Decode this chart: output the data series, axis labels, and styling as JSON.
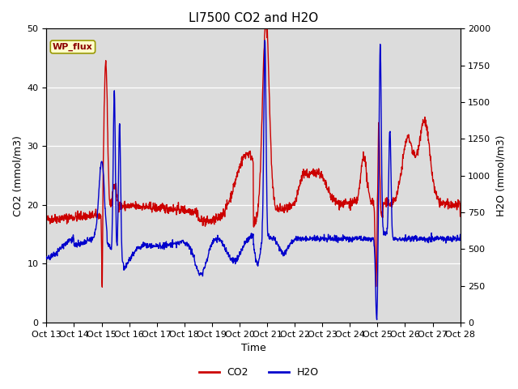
{
  "title": "LI7500 CO2 and H2O",
  "xlabel": "Time",
  "ylabel_left": "CO2 (mmol/m3)",
  "ylabel_right": "H2O (mmol/m3)",
  "co2_color": "#cc0000",
  "h2o_color": "#0000cc",
  "background_color": "#dcdcdc",
  "figure_bg": "#ffffff",
  "ylim_left": [
    0,
    50
  ],
  "ylim_right": [
    0,
    2000
  ],
  "xtick_labels": [
    "Oct 13",
    "Oct 14",
    "Oct 15",
    "Oct 16",
    "Oct 17",
    "Oct 18",
    "Oct 19",
    "Oct 20",
    "Oct 21",
    "Oct 22",
    "Oct 23",
    "Oct 24",
    "Oct 25",
    "Oct 26",
    "Oct 27",
    "Oct 28"
  ],
  "wp_flux_text": "WP_flux",
  "legend_co2": "CO2",
  "legend_h2o": "H2O",
  "linewidth": 1.0,
  "title_fontsize": 11,
  "axis_label_fontsize": 9,
  "tick_fontsize": 8
}
